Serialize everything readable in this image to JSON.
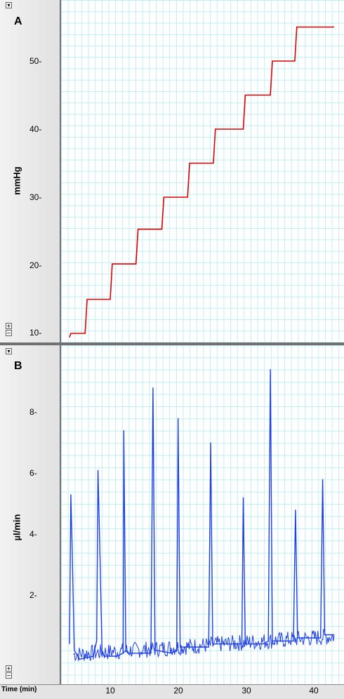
{
  "panel_a": {
    "letter": "A",
    "ylabel": "mmHg",
    "yticks": [
      "50",
      "40",
      "30",
      "20",
      "10"
    ]
  },
  "panel_b": {
    "letter": "B",
    "ylabel": "µl/min",
    "yticks": [
      "8",
      "6",
      "4",
      "2"
    ]
  },
  "time_axis": {
    "label": "Time (min)",
    "ticks": [
      "10",
      "20",
      "30",
      "40"
    ]
  },
  "controls": {
    "collapse": "▾",
    "zoom_in": "+",
    "zoom_out": "−"
  },
  "colors": {
    "pressure": "#dd0000",
    "flow": "#1f3fe6",
    "grid": "#bfeef2",
    "divider": "#707070"
  },
  "chart_data": [
    {
      "type": "line",
      "title": "A",
      "xlabel": "Time (min)",
      "ylabel": "mmHg",
      "xlim": [
        1,
        43
      ],
      "ylim": [
        9.4,
        60
      ],
      "grid": true,
      "series": [
        {
          "x": [
            4.0,
            4.2,
            6.3,
            6.6,
            10.0,
            10.3,
            13.8,
            14.1,
            17.6,
            17.9,
            21.4,
            21.7,
            25.2,
            25.5,
            29.6,
            29.9,
            33.6,
            33.9,
            37.2,
            37.5,
            41.0,
            41.3,
            43.0
          ],
          "y": [
            9.4,
            10.0,
            10.0,
            15.0,
            15.0,
            20.2,
            20.2,
            25.3,
            25.3,
            30.0,
            30.0,
            35.0,
            35.0,
            40.0,
            40.0,
            45.0,
            45.0,
            50.0,
            50.0,
            55.0,
            55.0,
            55.0,
            55.0
          ]
        }
      ]
    },
    {
      "type": "line",
      "title": "B",
      "xlabel": "Time (min)",
      "ylabel": "µl/min",
      "xlim": [
        1,
        43
      ],
      "ylim": [
        -0.8,
        10.0
      ],
      "grid": true,
      "series": [
        {
          "x": [
            4.0,
            4.2,
            4.4,
            4.7,
            5.5,
            7.5,
            8.0,
            8.2,
            8.5,
            8.8,
            9.2,
            11.0,
            11.9,
            12.0,
            12.3,
            12.6,
            15.0,
            16.0,
            16.3,
            16.6,
            19.0,
            19.8,
            20.0,
            20.3,
            23.5,
            24.5,
            24.8,
            25.1,
            28.5,
            29.4,
            29.6,
            29.9,
            32.5,
            33.3,
            33.6,
            33.9,
            36.5,
            37.0,
            37.3,
            37.6,
            40.5,
            41.0,
            41.3,
            41.6,
            43.0
          ],
          "y": [
            0.4,
            5.3,
            3.4,
            0.2,
            -0.1,
            0.0,
            0.5,
            6.1,
            3.2,
            0.1,
            0.0,
            0.0,
            0.1,
            7.4,
            0.2,
            0.1,
            0.1,
            0.1,
            8.8,
            0.2,
            0.1,
            0.2,
            7.8,
            0.3,
            0.3,
            0.3,
            7.0,
            0.4,
            0.4,
            0.4,
            5.2,
            0.4,
            0.4,
            0.5,
            9.4,
            0.5,
            0.5,
            0.5,
            4.8,
            0.6,
            0.6,
            0.6,
            5.8,
            0.7,
            0.7
          ]
        }
      ]
    }
  ]
}
